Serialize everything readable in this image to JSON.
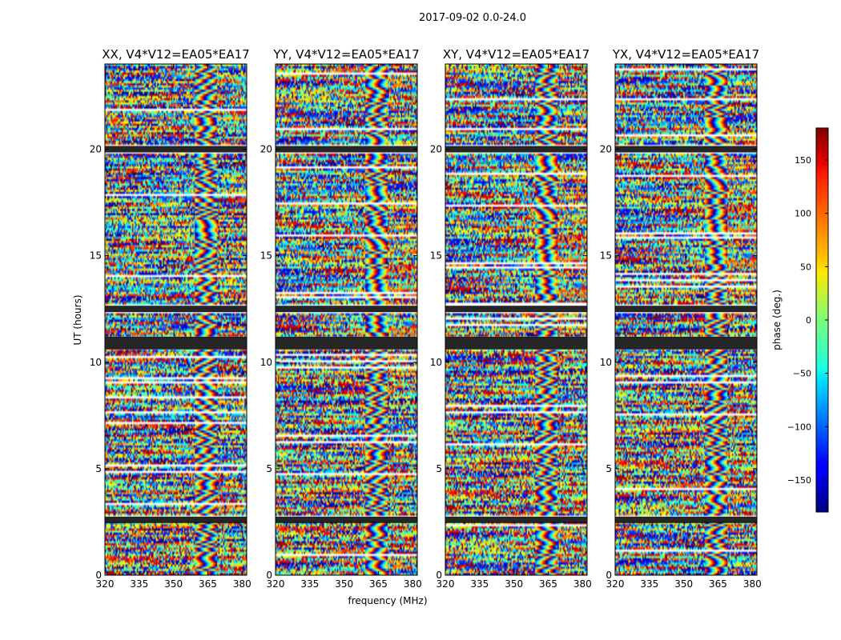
{
  "figure_title": "2017-09-02 0.0-24.0",
  "chart_data": {
    "type": "heatmap",
    "suptitle": "2017-09-02 0.0-24.0",
    "xlabel": "frequency (MHz)",
    "ylabel": "UT (hours)",
    "xlim": [
      320,
      382
    ],
    "ylim": [
      0,
      24
    ],
    "x_ticks": [
      320,
      335,
      350,
      365,
      380
    ],
    "y_ticks": [
      0,
      5,
      10,
      15,
      20
    ],
    "panels": [
      {
        "title": "XX, V4*V12=EA05*EA17",
        "polarization": "XX"
      },
      {
        "title": "YY, V4*V12=EA05*EA17",
        "polarization": "YY"
      },
      {
        "title": "XY, V4*V12=EA05*EA17",
        "polarization": "XY"
      },
      {
        "title": "YX, V4*V12=EA05*EA17",
        "polarization": "YX"
      }
    ],
    "colorbar": {
      "label": "phase (deg.)",
      "range": [
        -180,
        180
      ],
      "ticks": [
        -150,
        -100,
        -50,
        0,
        50,
        100,
        150
      ],
      "colormap": "jet"
    },
    "flagged_time_ranges_ut": [
      [
        2.45,
        2.75
      ],
      [
        12.35,
        12.65
      ],
      [
        10.6,
        11.2
      ],
      [
        19.85,
        20.15
      ]
    ]
  }
}
